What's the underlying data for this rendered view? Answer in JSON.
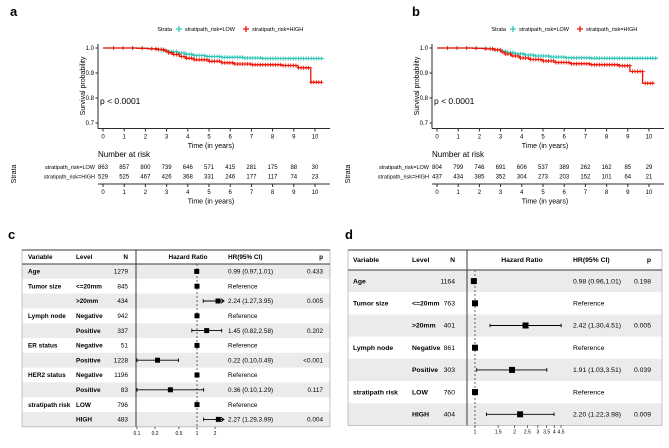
{
  "chart_data": [
    {
      "id": "a",
      "panel_label": "a",
      "type": "line",
      "subtype": "kaplan-meier",
      "legend_title": "Strata",
      "ylabel": "Survival probability",
      "xlabel": "Time (in years)",
      "yticks": [
        "1.0",
        "0.9",
        "0.8",
        "0.7"
      ],
      "xticks": [
        0,
        1,
        2,
        3,
        4,
        5,
        6,
        7,
        8,
        9,
        10
      ],
      "ylim": [
        0.7,
        1.0
      ],
      "annotation": "p < 0.0001",
      "series": [
        {
          "name": "stratipath_risk=LOW",
          "color": "#31C6B7",
          "points": [
            [
              0,
              1.0
            ],
            [
              1.8,
              0.999
            ],
            [
              2.2,
              0.997
            ],
            [
              2.5,
              0.994
            ],
            [
              2.8,
              0.99
            ],
            [
              3.1,
              0.985
            ],
            [
              3.5,
              0.98
            ],
            [
              3.9,
              0.975
            ],
            [
              4.3,
              0.97
            ],
            [
              4.9,
              0.966
            ],
            [
              5.6,
              0.963
            ],
            [
              6.6,
              0.96
            ],
            [
              7.5,
              0.958
            ],
            [
              10.4,
              0.957
            ]
          ]
        },
        {
          "name": "stratipath_risk=HIGH",
          "color": "#EF1507",
          "points": [
            [
              0,
              1.0
            ],
            [
              1.6,
              0.999
            ],
            [
              2.1,
              0.997
            ],
            [
              2.6,
              0.994
            ],
            [
              2.9,
              0.988
            ],
            [
              3.1,
              0.981
            ],
            [
              3.3,
              0.974
            ],
            [
              3.6,
              0.966
            ],
            [
              3.9,
              0.959
            ],
            [
              4.3,
              0.953
            ],
            [
              5.0,
              0.947
            ],
            [
              5.6,
              0.941
            ],
            [
              6.2,
              0.936
            ],
            [
              7.0,
              0.933
            ],
            [
              8.4,
              0.93
            ],
            [
              9.2,
              0.921
            ],
            [
              9.8,
              0.863
            ],
            [
              10.3,
              0.861
            ]
          ]
        }
      ],
      "risk_table": {
        "title": "Number at risk",
        "axis_title": "Strata",
        "xlabel": "Time (in years)",
        "rows": [
          {
            "name": "stratipath_risk=LOW",
            "color": "#31C6B7",
            "values": [
              "863",
              "857",
              "800",
              "739",
              "646",
              "571",
              "415",
              "281",
              "175",
              "88",
              "30"
            ]
          },
          {
            "name": "stratipath_risk=HIGH",
            "color": "#EF1507",
            "values": [
              "529",
              "525",
              "467",
              "426",
              "368",
              "331",
              "246",
              "177",
              "117",
              "74",
              "23"
            ]
          }
        ]
      }
    },
    {
      "id": "b",
      "panel_label": "b",
      "type": "line",
      "subtype": "kaplan-meier",
      "legend_title": "Strata",
      "ylabel": "Survival probability",
      "xlabel": "Time (in years)",
      "yticks": [
        "1.0",
        "0.9",
        "0.8",
        "0.7"
      ],
      "xticks": [
        0,
        1,
        2,
        3,
        4,
        5,
        6,
        7,
        8,
        9,
        10
      ],
      "ylim": [
        0.7,
        1.0
      ],
      "annotation": "p < 0.0001",
      "series": [
        {
          "name": "stratipath_risk=LOW",
          "color": "#31C6B7",
          "points": [
            [
              0,
              1.0
            ],
            [
              1.9,
              0.999
            ],
            [
              2.4,
              0.996
            ],
            [
              2.7,
              0.992
            ],
            [
              3.0,
              0.987
            ],
            [
              3.3,
              0.982
            ],
            [
              3.7,
              0.977
            ],
            [
              4.1,
              0.972
            ],
            [
              4.6,
              0.968
            ],
            [
              5.3,
              0.964
            ],
            [
              6.1,
              0.961
            ],
            [
              7.2,
              0.959
            ],
            [
              10.4,
              0.958
            ]
          ]
        },
        {
          "name": "stratipath_risk=HIGH",
          "color": "#EF1507",
          "points": [
            [
              0,
              1.0
            ],
            [
              1.7,
              0.999
            ],
            [
              2.2,
              0.997
            ],
            [
              2.7,
              0.993
            ],
            [
              3.0,
              0.984
            ],
            [
              3.2,
              0.976
            ],
            [
              3.5,
              0.968
            ],
            [
              3.9,
              0.96
            ],
            [
              4.4,
              0.954
            ],
            [
              5.0,
              0.948
            ],
            [
              5.6,
              0.942
            ],
            [
              6.3,
              0.937
            ],
            [
              7.2,
              0.933
            ],
            [
              8.6,
              0.929
            ],
            [
              9.1,
              0.906
            ],
            [
              9.7,
              0.859
            ],
            [
              10.2,
              0.857
            ]
          ]
        }
      ],
      "risk_table": {
        "title": "Number at risk",
        "axis_title": "Strata",
        "xlabel": "Time (in years)",
        "rows": [
          {
            "name": "stratipath_risk=LOW",
            "color": "#31C6B7",
            "values": [
              "804",
              "799",
              "746",
              "691",
              "606",
              "537",
              "389",
              "262",
              "162",
              "85",
              "29"
            ]
          },
          {
            "name": "stratipath_risk=HIGH",
            "color": "#EF1507",
            "values": [
              "437",
              "434",
              "385",
              "352",
              "304",
              "273",
              "203",
              "152",
              "101",
              "64",
              "21"
            ]
          }
        ]
      }
    },
    {
      "id": "c",
      "panel_label": "c",
      "type": "forest",
      "xscale": "log",
      "headers": {
        "variable": "Variable",
        "level": "Level",
        "n": "N",
        "hazard": "Hazard Ratio",
        "hr_ci": "HR(95% CI)",
        "p": "p"
      },
      "xticks": [
        "0.1",
        "0.2",
        "0.5",
        "1",
        "2"
      ],
      "rows": [
        {
          "variable": "Age",
          "level": "",
          "n": "1279",
          "hr": 0.99,
          "lo": 0.97,
          "hi": 1.01,
          "hr_ci": "0.99 (0.97,1.01)",
          "p": "0.433"
        },
        {
          "variable": "Tumor size",
          "level": "<=20mm",
          "n": "845",
          "ref": true,
          "hr_ci": "Reference",
          "p": ""
        },
        {
          "variable": "",
          "level": ">20mm",
          "n": "434",
          "hr": 2.24,
          "lo": 1.27,
          "hi": 3.95,
          "hr_ci": "2.24 (1.27,3.95)",
          "p": "0.005"
        },
        {
          "variable": "Lymph node",
          "level": "Negative",
          "n": "942",
          "ref": true,
          "hr_ci": "Reference",
          "p": ""
        },
        {
          "variable": "",
          "level": "Positive",
          "n": "337",
          "hr": 1.45,
          "lo": 0.82,
          "hi": 2.58,
          "hr_ci": "1.45 (0.82,2.58)",
          "p": "0.202"
        },
        {
          "variable": "ER status",
          "level": "Negative",
          "n": "51",
          "ref": true,
          "hr_ci": "Reference",
          "p": ""
        },
        {
          "variable": "",
          "level": "Positive",
          "n": "1228",
          "hr": 0.22,
          "lo": 0.1,
          "hi": 0.49,
          "hr_ci": "0.22 (0.10,0.49)",
          "p": "<0.001"
        },
        {
          "variable": "HER2 status",
          "level": "Negative",
          "n": "1196",
          "ref": true,
          "hr_ci": "Reference",
          "p": ""
        },
        {
          "variable": "",
          "level": "Positive",
          "n": "83",
          "hr": 0.36,
          "lo": 0.1,
          "hi": 1.29,
          "hr_ci": "0.36 (0.10,1.29)",
          "p": "0.117"
        },
        {
          "variable": "stratipath risk",
          "level": "LOW",
          "n": "796",
          "ref": true,
          "hr_ci": "Reference",
          "p": ""
        },
        {
          "variable": "",
          "level": "HIGH",
          "n": "483",
          "hr": 2.27,
          "lo": 1.29,
          "hi": 3.99,
          "hr_ci": "2.27 (1.29,3.99)",
          "p": "0.004"
        }
      ]
    },
    {
      "id": "d",
      "panel_label": "d",
      "type": "forest",
      "xscale": "log",
      "headers": {
        "variable": "Variable",
        "level": "Level",
        "n": "N",
        "hazard": "Hazard Ratio",
        "hr_ci": "HR(95% CI)",
        "p": "p"
      },
      "xticks": [
        "1",
        "1.5",
        "2",
        "2.5",
        "3",
        "3.5",
        "4",
        "4.5"
      ],
      "rows": [
        {
          "variable": "Age",
          "level": "",
          "n": "1164",
          "hr": 0.98,
          "lo": 0.96,
          "hi": 1.01,
          "hr_ci": "0.98 (0.96,1.01)",
          "p": "0.198"
        },
        {
          "variable": "Tumor size",
          "level": "<=20mm",
          "n": "763",
          "ref": true,
          "hr_ci": "Reference",
          "p": ""
        },
        {
          "variable": "",
          "level": ">20mm",
          "n": "401",
          "hr": 2.42,
          "lo": 1.3,
          "hi": 4.51,
          "hr_ci": "2.42 (1.30,4.51)",
          "p": "0.005"
        },
        {
          "variable": "Lymph node",
          "level": "Negative",
          "n": "861",
          "ref": true,
          "hr_ci": "Reference",
          "p": ""
        },
        {
          "variable": "",
          "level": "Positive",
          "n": "303",
          "hr": 1.91,
          "lo": 1.03,
          "hi": 3.51,
          "hr_ci": "1.91 (1.03,3.51)",
          "p": "0.039"
        },
        {
          "variable": "stratipath risk",
          "level": "LOW",
          "n": "760",
          "ref": true,
          "hr_ci": "Reference",
          "p": ""
        },
        {
          "variable": "",
          "level": "HIGH",
          "n": "404",
          "hr": 2.2,
          "lo": 1.22,
          "hi": 3.98,
          "hr_ci": "2.20 (1.22,3.98)",
          "p": "0.009"
        }
      ]
    }
  ]
}
